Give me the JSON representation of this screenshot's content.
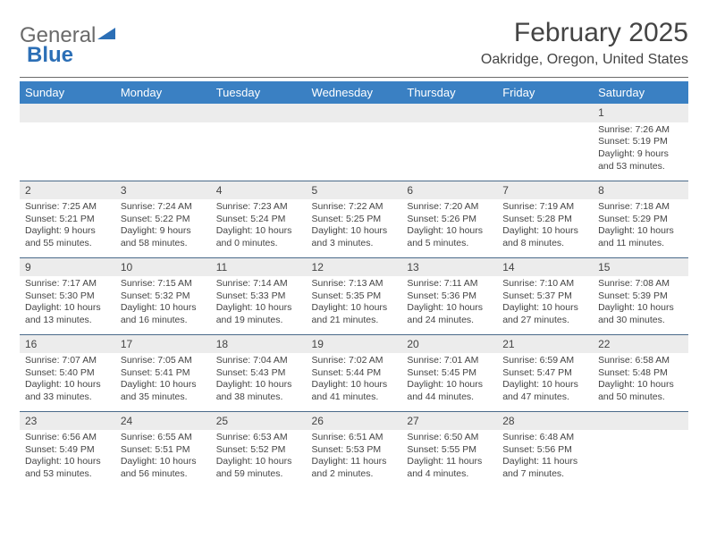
{
  "logo": {
    "text1": "General",
    "text2": "Blue"
  },
  "title": "February 2025",
  "location": "Oakridge, Oregon, United States",
  "colors": {
    "header_bg": "#3a80c3",
    "header_fg": "#ffffff",
    "daynum_bg": "#ececec",
    "row_border": "#4a6a8a",
    "logo_primary": "#6a6a6a",
    "logo_accent": "#2c6fb6"
  },
  "weekdays": [
    "Sunday",
    "Monday",
    "Tuesday",
    "Wednesday",
    "Thursday",
    "Friday",
    "Saturday"
  ],
  "weeks": [
    [
      {
        "blank": true
      },
      {
        "blank": true
      },
      {
        "blank": true
      },
      {
        "blank": true
      },
      {
        "blank": true
      },
      {
        "blank": true
      },
      {
        "day": "1",
        "sunrise": "Sunrise: 7:26 AM",
        "sunset": "Sunset: 5:19 PM",
        "dl1": "Daylight: 9 hours",
        "dl2": "and 53 minutes."
      }
    ],
    [
      {
        "day": "2",
        "sunrise": "Sunrise: 7:25 AM",
        "sunset": "Sunset: 5:21 PM",
        "dl1": "Daylight: 9 hours",
        "dl2": "and 55 minutes."
      },
      {
        "day": "3",
        "sunrise": "Sunrise: 7:24 AM",
        "sunset": "Sunset: 5:22 PM",
        "dl1": "Daylight: 9 hours",
        "dl2": "and 58 minutes."
      },
      {
        "day": "4",
        "sunrise": "Sunrise: 7:23 AM",
        "sunset": "Sunset: 5:24 PM",
        "dl1": "Daylight: 10 hours",
        "dl2": "and 0 minutes."
      },
      {
        "day": "5",
        "sunrise": "Sunrise: 7:22 AM",
        "sunset": "Sunset: 5:25 PM",
        "dl1": "Daylight: 10 hours",
        "dl2": "and 3 minutes."
      },
      {
        "day": "6",
        "sunrise": "Sunrise: 7:20 AM",
        "sunset": "Sunset: 5:26 PM",
        "dl1": "Daylight: 10 hours",
        "dl2": "and 5 minutes."
      },
      {
        "day": "7",
        "sunrise": "Sunrise: 7:19 AM",
        "sunset": "Sunset: 5:28 PM",
        "dl1": "Daylight: 10 hours",
        "dl2": "and 8 minutes."
      },
      {
        "day": "8",
        "sunrise": "Sunrise: 7:18 AM",
        "sunset": "Sunset: 5:29 PM",
        "dl1": "Daylight: 10 hours",
        "dl2": "and 11 minutes."
      }
    ],
    [
      {
        "day": "9",
        "sunrise": "Sunrise: 7:17 AM",
        "sunset": "Sunset: 5:30 PM",
        "dl1": "Daylight: 10 hours",
        "dl2": "and 13 minutes."
      },
      {
        "day": "10",
        "sunrise": "Sunrise: 7:15 AM",
        "sunset": "Sunset: 5:32 PM",
        "dl1": "Daylight: 10 hours",
        "dl2": "and 16 minutes."
      },
      {
        "day": "11",
        "sunrise": "Sunrise: 7:14 AM",
        "sunset": "Sunset: 5:33 PM",
        "dl1": "Daylight: 10 hours",
        "dl2": "and 19 minutes."
      },
      {
        "day": "12",
        "sunrise": "Sunrise: 7:13 AM",
        "sunset": "Sunset: 5:35 PM",
        "dl1": "Daylight: 10 hours",
        "dl2": "and 21 minutes."
      },
      {
        "day": "13",
        "sunrise": "Sunrise: 7:11 AM",
        "sunset": "Sunset: 5:36 PM",
        "dl1": "Daylight: 10 hours",
        "dl2": "and 24 minutes."
      },
      {
        "day": "14",
        "sunrise": "Sunrise: 7:10 AM",
        "sunset": "Sunset: 5:37 PM",
        "dl1": "Daylight: 10 hours",
        "dl2": "and 27 minutes."
      },
      {
        "day": "15",
        "sunrise": "Sunrise: 7:08 AM",
        "sunset": "Sunset: 5:39 PM",
        "dl1": "Daylight: 10 hours",
        "dl2": "and 30 minutes."
      }
    ],
    [
      {
        "day": "16",
        "sunrise": "Sunrise: 7:07 AM",
        "sunset": "Sunset: 5:40 PM",
        "dl1": "Daylight: 10 hours",
        "dl2": "and 33 minutes."
      },
      {
        "day": "17",
        "sunrise": "Sunrise: 7:05 AM",
        "sunset": "Sunset: 5:41 PM",
        "dl1": "Daylight: 10 hours",
        "dl2": "and 35 minutes."
      },
      {
        "day": "18",
        "sunrise": "Sunrise: 7:04 AM",
        "sunset": "Sunset: 5:43 PM",
        "dl1": "Daylight: 10 hours",
        "dl2": "and 38 minutes."
      },
      {
        "day": "19",
        "sunrise": "Sunrise: 7:02 AM",
        "sunset": "Sunset: 5:44 PM",
        "dl1": "Daylight: 10 hours",
        "dl2": "and 41 minutes."
      },
      {
        "day": "20",
        "sunrise": "Sunrise: 7:01 AM",
        "sunset": "Sunset: 5:45 PM",
        "dl1": "Daylight: 10 hours",
        "dl2": "and 44 minutes."
      },
      {
        "day": "21",
        "sunrise": "Sunrise: 6:59 AM",
        "sunset": "Sunset: 5:47 PM",
        "dl1": "Daylight: 10 hours",
        "dl2": "and 47 minutes."
      },
      {
        "day": "22",
        "sunrise": "Sunrise: 6:58 AM",
        "sunset": "Sunset: 5:48 PM",
        "dl1": "Daylight: 10 hours",
        "dl2": "and 50 minutes."
      }
    ],
    [
      {
        "day": "23",
        "sunrise": "Sunrise: 6:56 AM",
        "sunset": "Sunset: 5:49 PM",
        "dl1": "Daylight: 10 hours",
        "dl2": "and 53 minutes."
      },
      {
        "day": "24",
        "sunrise": "Sunrise: 6:55 AM",
        "sunset": "Sunset: 5:51 PM",
        "dl1": "Daylight: 10 hours",
        "dl2": "and 56 minutes."
      },
      {
        "day": "25",
        "sunrise": "Sunrise: 6:53 AM",
        "sunset": "Sunset: 5:52 PM",
        "dl1": "Daylight: 10 hours",
        "dl2": "and 59 minutes."
      },
      {
        "day": "26",
        "sunrise": "Sunrise: 6:51 AM",
        "sunset": "Sunset: 5:53 PM",
        "dl1": "Daylight: 11 hours",
        "dl2": "and 2 minutes."
      },
      {
        "day": "27",
        "sunrise": "Sunrise: 6:50 AM",
        "sunset": "Sunset: 5:55 PM",
        "dl1": "Daylight: 11 hours",
        "dl2": "and 4 minutes."
      },
      {
        "day": "28",
        "sunrise": "Sunrise: 6:48 AM",
        "sunset": "Sunset: 5:56 PM",
        "dl1": "Daylight: 11 hours",
        "dl2": "and 7 minutes."
      },
      {
        "blank": true
      }
    ]
  ]
}
